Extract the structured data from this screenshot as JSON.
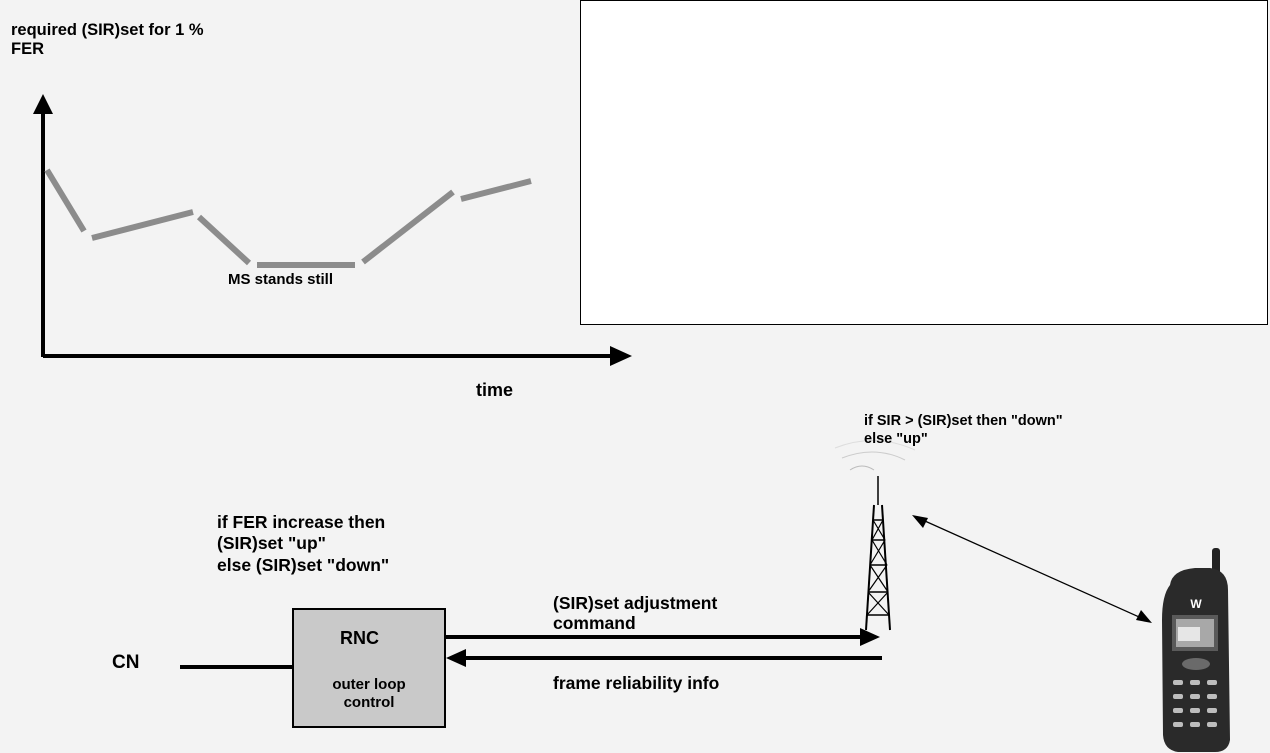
{
  "chart": {
    "y_axis_label": "required (SIR)set for 1 %\nFER",
    "x_axis_label": "time",
    "annotation": "MS stands still"
  },
  "rnc_logic": {
    "text": "if FER increase then\n(SIR)set \"up\"\nelse (SIR)set \"down\""
  },
  "bts_logic": {
    "text": "if SIR > (SIR)set then \"down\"\nelse \"up\""
  },
  "rnc_box": {
    "title": "RNC",
    "subtitle": "outer loop\ncontrol"
  },
  "cn_label": "CN",
  "links": {
    "adjustment_command": "(SIR)set adjustment\ncommand",
    "reliability_info": "frame reliability info"
  },
  "phone": {
    "brand_mark": "W"
  },
  "colors": {
    "curve": "#8c8c8c",
    "rnc_fill": "#c9c9c9",
    "background": "#f3f3f3"
  }
}
